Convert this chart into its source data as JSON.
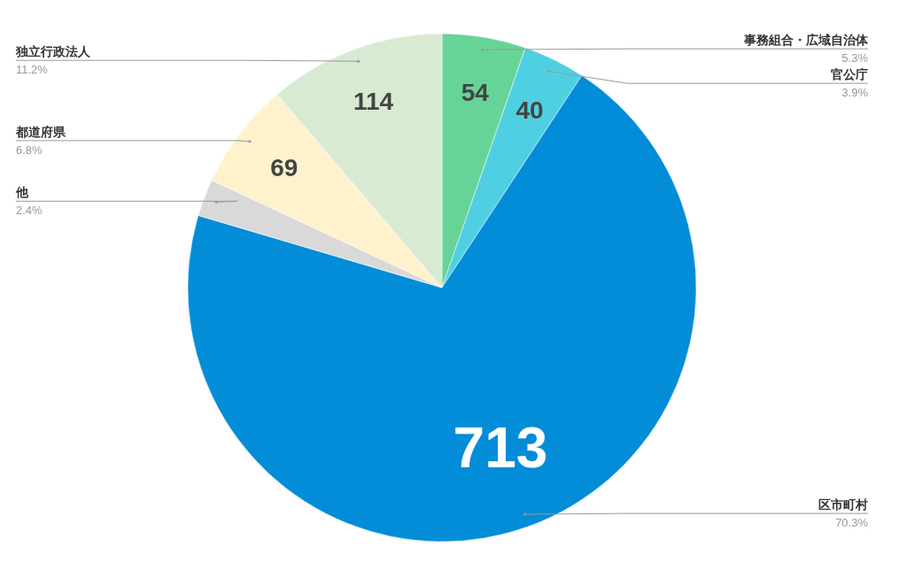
{
  "chart_data": {
    "type": "pie",
    "categories": [
      "事務組合・広域自治体",
      "官公庁",
      "区市町村",
      "他",
      "都道府県",
      "独立行政法人"
    ],
    "values": [
      54,
      40,
      713,
      24,
      69,
      114
    ],
    "value_labels": [
      "54",
      "40",
      "713",
      null,
      "69",
      "114"
    ],
    "colors": [
      "#67d497",
      "#4fd0e2",
      "#038cd8",
      "#d9d9d9",
      "#fff2cc",
      "#d9ead3"
    ],
    "annotations": [
      "5.3%",
      "3.9%",
      "70.3%",
      "2.4%",
      "6.8%",
      "11.2%"
    ]
  }
}
